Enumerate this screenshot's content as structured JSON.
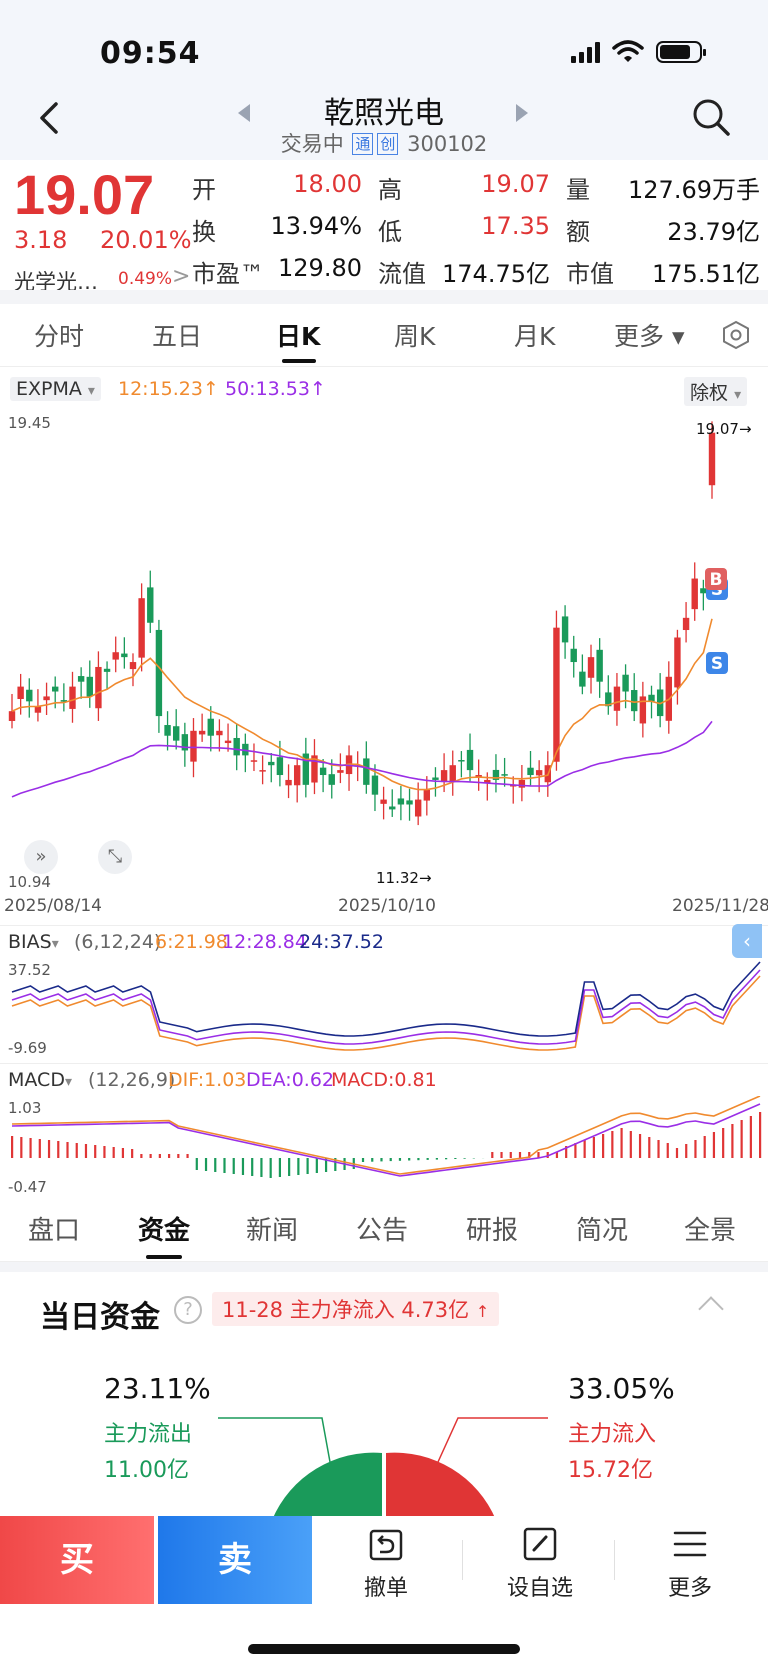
{
  "status": {
    "time": "09:54"
  },
  "header": {
    "title": "乾照光电",
    "status": "交易中",
    "tag1": "通",
    "tag2": "创",
    "code": "300102"
  },
  "quote": {
    "price": "19.07",
    "change": "3.18",
    "change_pct": "20.01%",
    "sector": "光学光…",
    "sector_pct": "0.49%",
    "sector_arrow": ">",
    "fields": [
      {
        "label": "开",
        "value": "18.00",
        "color": "red"
      },
      {
        "label": "高",
        "value": "19.07",
        "color": "red"
      },
      {
        "label": "量",
        "value": "127.69万手",
        "color": "black"
      },
      {
        "label": "换",
        "value": "13.94%",
        "color": "black"
      },
      {
        "label": "低",
        "value": "17.35",
        "color": "red"
      },
      {
        "label": "额",
        "value": "23.79亿",
        "color": "black"
      },
      {
        "label": "市盈™",
        "value": "129.80",
        "color": "black"
      },
      {
        "label": "流值",
        "value": "174.75亿",
        "color": "black"
      },
      {
        "label": "市值",
        "value": "175.51亿",
        "color": "black"
      }
    ]
  },
  "chart_tabs": [
    "分时",
    "五日",
    "日K",
    "周K",
    "月K",
    "更多 ▾"
  ],
  "chart_tabs_active": 2,
  "kline": {
    "indicator": "EXPMA",
    "ema12": "12:15.23",
    "ema50": "50:13.53",
    "arrow": "↑",
    "adjust": "除权",
    "dropdown": "▾",
    "y_max": "19.45",
    "y_min": "10.94",
    "high_mark": "19.07→",
    "low_mark": "11.32→",
    "dates": [
      "2025/08/14",
      "2025/10/10",
      "2025/11/28"
    ],
    "marker_b": "B",
    "marker_s": "S"
  },
  "bias": {
    "indicator": "BIAS",
    "params": "(6,12,24)",
    "b6": "6:21.98",
    "b12": "12:28.84",
    "b24": "24:37.52",
    "y_max": "37.52",
    "y_min": "-9.69"
  },
  "macd": {
    "indicator": "MACD",
    "params": "(12,26,9)",
    "dif": "DIF:1.03",
    "dea": "DEA:0.62",
    "macd": "MACD:0.81",
    "y_max": "1.03",
    "y_min": "-0.47"
  },
  "bottom_tabs": [
    "盘口",
    "资金",
    "新闻",
    "公告",
    "研报",
    "简况",
    "全景"
  ],
  "bottom_tabs_active": 1,
  "funds": {
    "title": "当日资金",
    "help": "?",
    "badge": "11-28 主力净流入 4.73亿",
    "out_pct": "23.11%",
    "out_label": "主力流出",
    "out_value": "11.00亿",
    "in_pct": "33.05%",
    "in_label": "主力流入",
    "in_value": "15.72亿"
  },
  "actions": {
    "buy": "买",
    "sell": "卖",
    "cancel": "撤单",
    "watch": "设自选",
    "more": "更多"
  },
  "colors": {
    "up": "#e03535",
    "down": "#1a9a5a",
    "ema12": "#f08a2e",
    "ema50": "#9a2ee6",
    "bias24": "#1a2a8a"
  },
  "chart_data": [
    {
      "type": "candlestick",
      "title": "EXPMA",
      "x_range": [
        "2025/08/14",
        "2025/11/28"
      ],
      "ylim": [
        10.94,
        19.45
      ],
      "last_close": 19.07,
      "low": 11.32,
      "series": [
        {
          "name": "12",
          "last": 15.23
        },
        {
          "name": "50",
          "last": 13.53
        }
      ]
    },
    {
      "type": "line",
      "title": "BIAS",
      "ylim": [
        -9.69,
        37.52
      ],
      "series": [
        {
          "name": "6",
          "last": 21.98
        },
        {
          "name": "12",
          "last": 28.84
        },
        {
          "name": "24",
          "last": 37.52
        }
      ]
    },
    {
      "type": "bar",
      "title": "MACD",
      "ylim": [
        -0.47,
        1.03
      ],
      "series": [
        {
          "name": "DIF",
          "last": 1.03
        },
        {
          "name": "DEA",
          "last": 0.62
        },
        {
          "name": "MACD",
          "last": 0.81
        }
      ]
    }
  ]
}
